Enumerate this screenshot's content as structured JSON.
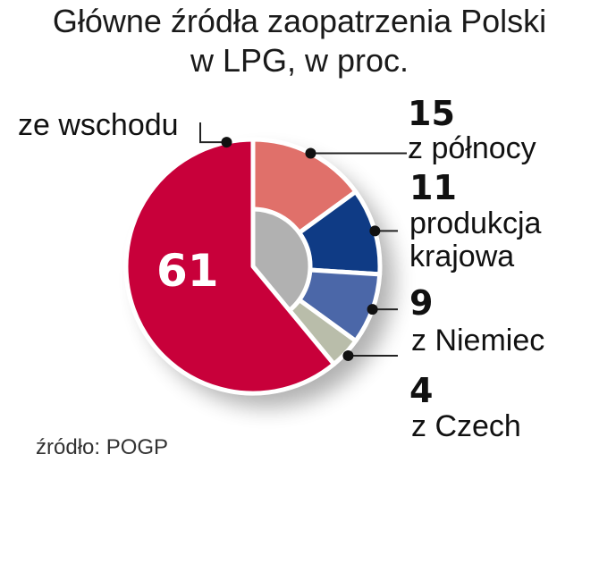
{
  "chart_data": {
    "type": "pie",
    "title_line1": "Główne źródła zaopatrzenia Polski",
    "title_line2": "w LPG, w proc.",
    "slices": [
      {
        "label": "z północy",
        "label_lines": [
          "z północy"
        ],
        "value": 15,
        "value_text": "15",
        "color": "#e0706a"
      },
      {
        "label": "produkcja krajowa",
        "label_lines": [
          "produkcja",
          "krajowa"
        ],
        "value": 11,
        "value_text": "11",
        "color": "#0f3b85"
      },
      {
        "label": "z Niemiec",
        "label_lines": [
          "z Niemiec"
        ],
        "value": 9,
        "value_text": "9",
        "color": "#4b67a8"
      },
      {
        "label": "z Czech",
        "label_lines": [
          "z Czech"
        ],
        "value": 4,
        "value_text": "4",
        "color": "#b9bdaa"
      },
      {
        "label": "ze wschodu",
        "label_lines": [
          "ze wschodu"
        ],
        "value": 61,
        "value_text": "61",
        "color": "#c8003a"
      }
    ],
    "source": "źródło: POGP"
  }
}
